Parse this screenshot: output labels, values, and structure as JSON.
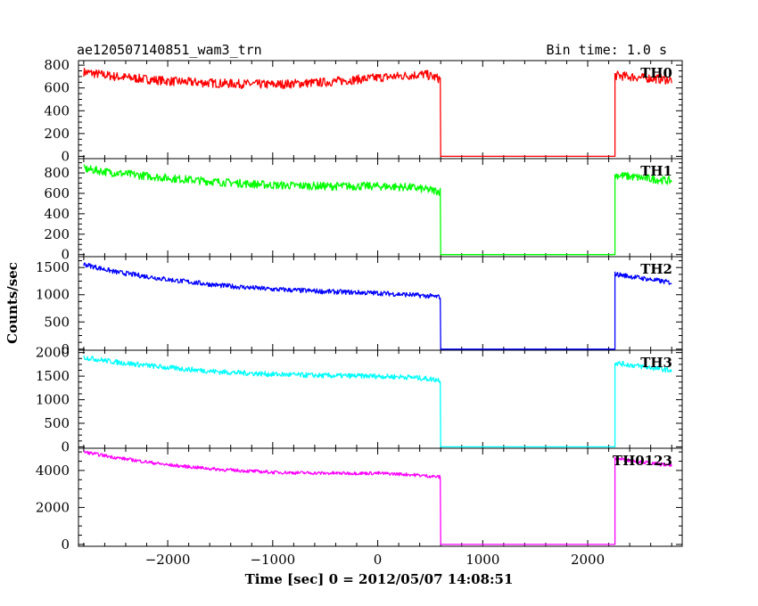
{
  "header": {
    "left_title": "ae120507140851_wam3_trn",
    "right_title": "Bin time: 1.0 s"
  },
  "axes": {
    "xlabel": "Time [sec] 0 = 2012/05/07 14:08:51",
    "ylabel": "Counts/sec"
  },
  "chart_data": {
    "type": "line",
    "title": "ae120507140851_wam3_trn",
    "subtitle": "Bin time: 1.0 s",
    "xlabel": "Time [sec] 0 = 2012/05/07 14:08:51",
    "ylabel": "Counts/sec",
    "xlim": [
      -2850,
      2900
    ],
    "xticks": [
      -2000,
      -1000,
      0,
      1000,
      2000
    ],
    "grid": false,
    "legend": "none",
    "gap": {
      "start": 600,
      "end": 2260,
      "value": 0
    },
    "panels": [
      {
        "name": "TH0",
        "color": "#ff0000",
        "ylim": [
          -20,
          840
        ],
        "yticks": [
          0,
          200,
          400,
          600,
          800
        ],
        "noise": 40,
        "x": [
          -2800,
          -2500,
          -2000,
          -1500,
          -1000,
          -500,
          0,
          300,
          450,
          590,
          2260,
          2800
        ],
        "y": [
          740,
          700,
          660,
          640,
          630,
          650,
          690,
          710,
          720,
          680,
          710,
          670
        ]
      },
      {
        "name": "TH1",
        "color": "#00ff00",
        "ylim": [
          -20,
          940
        ],
        "yticks": [
          0,
          200,
          400,
          600,
          800
        ],
        "noise": 40,
        "x": [
          -2800,
          -2500,
          -2000,
          -1500,
          -1000,
          -500,
          0,
          300,
          590,
          2260,
          2800
        ],
        "y": [
          840,
          800,
          750,
          710,
          680,
          670,
          670,
          660,
          620,
          780,
          720
        ]
      },
      {
        "name": "TH2",
        "color": "#0000ff",
        "ylim": [
          -20,
          1700
        ],
        "yticks": [
          0,
          500,
          1000,
          1500
        ],
        "noise": 45,
        "x": [
          -2800,
          -2500,
          -2000,
          -1500,
          -1000,
          -500,
          0,
          300,
          590,
          2260,
          2800
        ],
        "y": [
          1560,
          1420,
          1280,
          1170,
          1100,
          1060,
          1030,
          1000,
          960,
          1380,
          1220
        ]
      },
      {
        "name": "TH3",
        "color": "#00ffff",
        "ylim": [
          -30,
          2050
        ],
        "yticks": [
          0,
          500,
          1000,
          1500,
          2000
        ],
        "noise": 55,
        "x": [
          -2800,
          -2500,
          -2000,
          -1500,
          -1000,
          -500,
          0,
          300,
          590,
          2260,
          2800
        ],
        "y": [
          1900,
          1800,
          1680,
          1590,
          1540,
          1510,
          1500,
          1480,
          1420,
          1780,
          1620
        ]
      },
      {
        "name": "TH0123",
        "color": "#ff00ff",
        "ylim": [
          -100,
          5200
        ],
        "yticks": [
          0,
          2000,
          4000
        ],
        "noise": 90,
        "x": [
          -2800,
          -2500,
          -2000,
          -1500,
          -1000,
          -500,
          0,
          300,
          590,
          2260,
          2800
        ],
        "y": [
          5000,
          4700,
          4300,
          4050,
          3900,
          3850,
          3850,
          3780,
          3650,
          4650,
          4250
        ]
      }
    ]
  }
}
